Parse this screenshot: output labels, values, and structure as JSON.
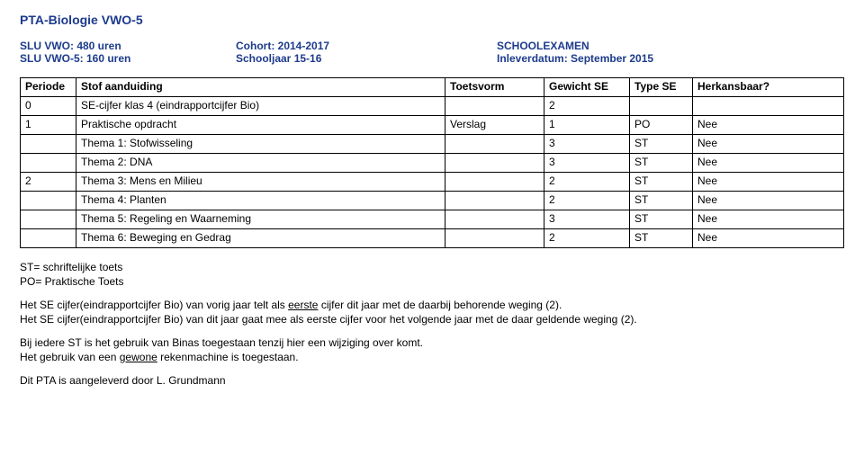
{
  "title": "PTA-Biologie VWO-5",
  "meta": {
    "slu_vwo": "SLU VWO: 480 uren",
    "slu_vwo5": "SLU VWO-5: 160 uren",
    "cohort": "Cohort: 2014-2017",
    "schooljaar": "Schooljaar 15-16",
    "schoolexamen": "SCHOOLEXAMEN",
    "inlever": "Inleverdatum: September 2015"
  },
  "table": {
    "headers": {
      "periode": "Periode",
      "stof": "Stof aanduiding",
      "toets": "Toetsvorm",
      "gewicht": "Gewicht SE",
      "type": "Type SE",
      "herk": "Herkansbaar?"
    },
    "rows": [
      {
        "periode": "0",
        "stof": "SE-cijfer klas 4 (eindrapportcijfer Bio)",
        "toets": "",
        "gewicht": "2",
        "type": "",
        "herk": ""
      },
      {
        "periode": "1",
        "stof": "Praktische opdracht",
        "toets": "Verslag",
        "gewicht": "1",
        "type": "PO",
        "herk": "Nee"
      },
      {
        "periode": "",
        "stof": "Thema 1: Stofwisseling",
        "toets": "",
        "gewicht": "3",
        "type": "ST",
        "herk": "Nee"
      },
      {
        "periode": "",
        "stof": "Thema 2: DNA",
        "toets": "",
        "gewicht": "3",
        "type": "ST",
        "herk": "Nee"
      },
      {
        "periode": "2",
        "stof": "Thema 3: Mens en Milieu",
        "toets": "",
        "gewicht": "2",
        "type": "ST",
        "herk": "Nee"
      },
      {
        "periode": "",
        "stof": "Thema 4: Planten",
        "toets": "",
        "gewicht": "2",
        "type": "ST",
        "herk": "Nee"
      },
      {
        "periode": "",
        "stof": "Thema 5: Regeling en Waarneming",
        "toets": "",
        "gewicht": "3",
        "type": "ST",
        "herk": "Nee"
      },
      {
        "periode": "",
        "stof": "Thema 6: Beweging en Gedrag",
        "toets": "",
        "gewicht": "2",
        "type": "ST",
        "herk": "Nee"
      }
    ]
  },
  "notes": {
    "st": "ST= schriftelijke toets",
    "po": "PO= Praktische Toets",
    "c1a": "Het SE cijfer(eindrapportcijfer Bio) van vorig jaar telt als ",
    "c1u": "eerste",
    "c1b": " cijfer dit jaar met de daarbij behorende weging (2).",
    "c2": "Het SE cijfer(eindrapportcijfer Bio) van dit jaar gaat mee als eerste cijfer voor het volgende jaar met de daar geldende weging (2).",
    "d1": "Bij iedere ST is het gebruik van Binas toegestaan tenzij hier een wijziging over komt.",
    "d2a": "Het gebruik van een ",
    "d2u": "gewone",
    "d2b": " rekenmachine is toegestaan.",
    "author": "Dit PTA is aangeleverd door L. Grundmann"
  }
}
